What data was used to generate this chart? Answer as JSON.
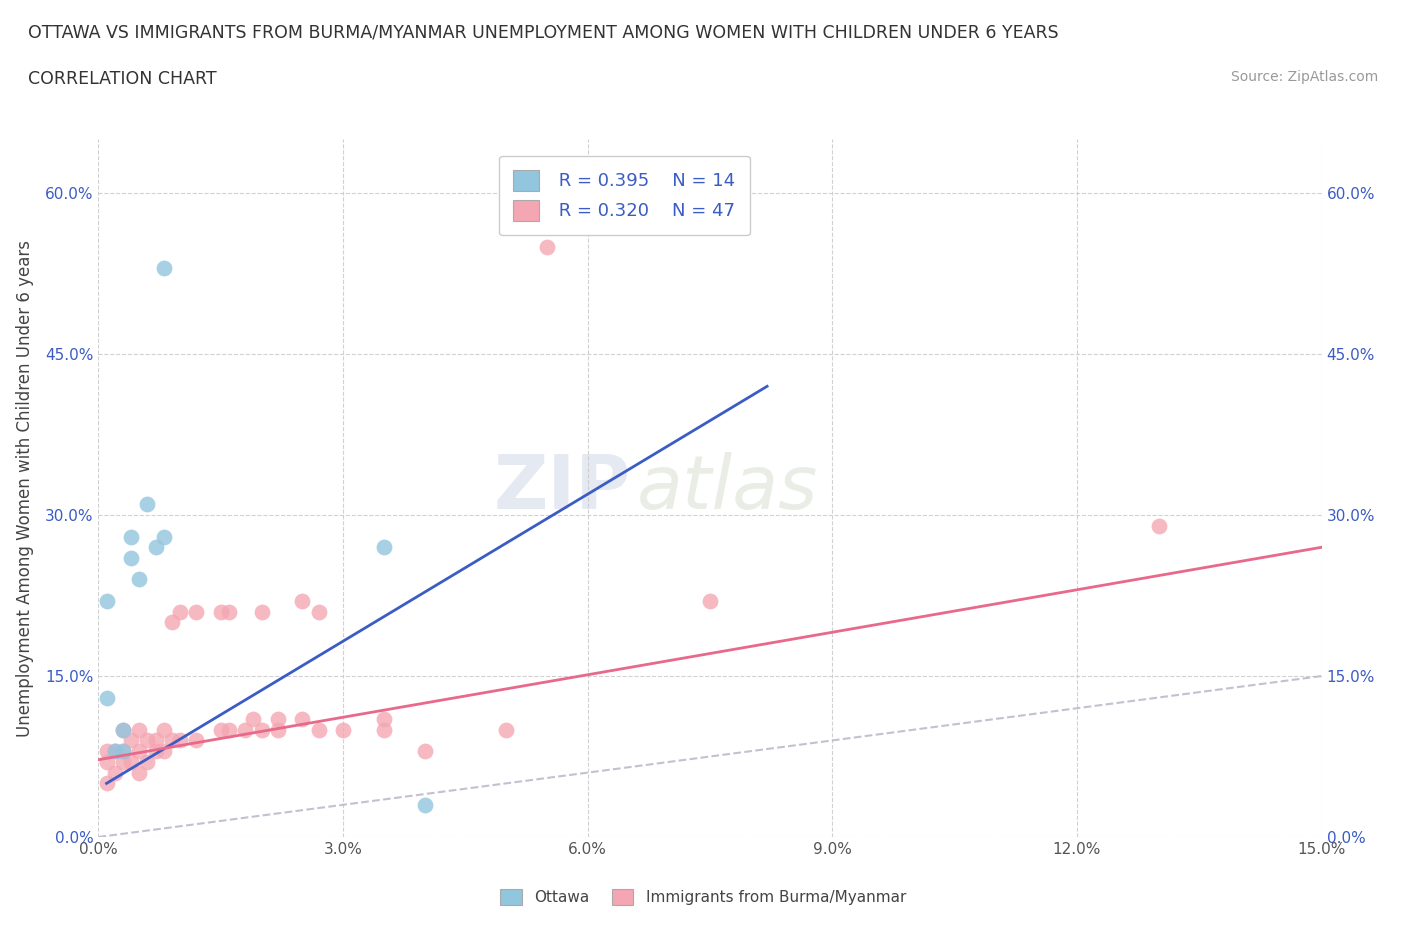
{
  "title_line1": "OTTAWA VS IMMIGRANTS FROM BURMA/MYANMAR UNEMPLOYMENT AMONG WOMEN WITH CHILDREN UNDER 6 YEARS",
  "title_line2": "CORRELATION CHART",
  "source": "Source: ZipAtlas.com",
  "ylabel": "Unemployment Among Women with Children Under 6 years",
  "xlim": [
    0.0,
    0.15
  ],
  "ylim": [
    0.0,
    0.65
  ],
  "xticks": [
    0.0,
    0.03,
    0.06,
    0.09,
    0.12,
    0.15
  ],
  "yticks": [
    0.0,
    0.15,
    0.3,
    0.45,
    0.6
  ],
  "xticklabels": [
    "0.0%",
    "3.0%",
    "6.0%",
    "9.0%",
    "12.0%",
    "15.0%"
  ],
  "yticklabels": [
    "0.0%",
    "15.0%",
    "30.0%",
    "45.0%",
    "60.0%"
  ],
  "watermark_zip": "ZIP",
  "watermark_atlas": "atlas",
  "legend_r1": "R = 0.395",
  "legend_n1": "N = 14",
  "legend_r2": "R = 0.320",
  "legend_n2": "N = 47",
  "ottawa_color": "#92C5DE",
  "burma_color": "#F4A6B2",
  "ottawa_line_color": "#3B5CC4",
  "burma_line_color": "#E8698A",
  "diag_line_color": "#BBBBCC",
  "background_color": "#FFFFFF",
  "ottawa_x": [
    0.001,
    0.001,
    0.002,
    0.003,
    0.003,
    0.004,
    0.004,
    0.005,
    0.006,
    0.007,
    0.008,
    0.008,
    0.035,
    0.04
  ],
  "ottawa_y": [
    0.13,
    0.22,
    0.08,
    0.08,
    0.1,
    0.26,
    0.28,
    0.24,
    0.31,
    0.27,
    0.28,
    0.53,
    0.27,
    0.03
  ],
  "burma_x": [
    0.001,
    0.001,
    0.001,
    0.002,
    0.002,
    0.003,
    0.003,
    0.003,
    0.004,
    0.004,
    0.005,
    0.005,
    0.005,
    0.006,
    0.006,
    0.007,
    0.007,
    0.008,
    0.008,
    0.009,
    0.009,
    0.01,
    0.01,
    0.012,
    0.012,
    0.015,
    0.015,
    0.016,
    0.016,
    0.018,
    0.019,
    0.02,
    0.02,
    0.022,
    0.022,
    0.025,
    0.025,
    0.027,
    0.027,
    0.03,
    0.035,
    0.035,
    0.04,
    0.05,
    0.055,
    0.075,
    0.13
  ],
  "burma_y": [
    0.05,
    0.07,
    0.08,
    0.06,
    0.08,
    0.07,
    0.08,
    0.1,
    0.07,
    0.09,
    0.06,
    0.08,
    0.1,
    0.07,
    0.09,
    0.08,
    0.09,
    0.08,
    0.1,
    0.09,
    0.2,
    0.09,
    0.21,
    0.09,
    0.21,
    0.1,
    0.21,
    0.1,
    0.21,
    0.1,
    0.11,
    0.1,
    0.21,
    0.1,
    0.11,
    0.11,
    0.22,
    0.1,
    0.21,
    0.1,
    0.1,
    0.11,
    0.08,
    0.1,
    0.55,
    0.22,
    0.29
  ],
  "ottawa_line_x": [
    0.001,
    0.082
  ],
  "ottawa_line_y": [
    0.05,
    0.42
  ],
  "burma_line_x": [
    0.0,
    0.15
  ],
  "burma_line_y": [
    0.072,
    0.27
  ]
}
